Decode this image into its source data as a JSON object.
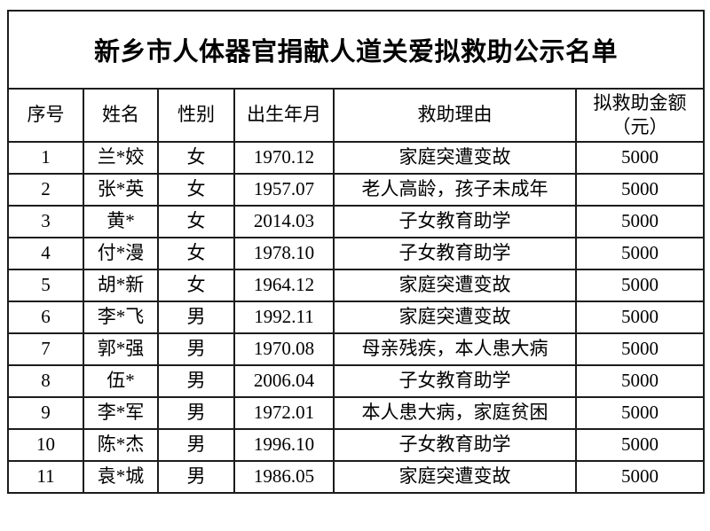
{
  "page": {
    "background_color": "#ffffff",
    "border_color": "#1c1c1c",
    "text_color": "#000000"
  },
  "title": "新乡市人体器官捐献人道关爱拟救助公示名单",
  "table": {
    "headers": [
      "序号",
      "姓名",
      "性别",
      "出生年月",
      "救助理由",
      "拟救助金额\n（元）"
    ],
    "rows": [
      [
        "1",
        "兰*姣",
        "女",
        "1970.12",
        "家庭突遭变故",
        "5000"
      ],
      [
        "2",
        "张*英",
        "女",
        "1957.07",
        "老人高龄，孩子未成年",
        "5000"
      ],
      [
        "3",
        "黄*",
        "女",
        "2014.03",
        "子女教育助学",
        "5000"
      ],
      [
        "4",
        "付*漫",
        "女",
        "1978.10",
        "子女教育助学",
        "5000"
      ],
      [
        "5",
        "胡*新",
        "女",
        "1964.12",
        "家庭突遭变故",
        "5000"
      ],
      [
        "6",
        "李*飞",
        "男",
        "1992.11",
        "家庭突遭变故",
        "5000"
      ],
      [
        "7",
        "郭*强",
        "男",
        "1970.08",
        "母亲残疾，本人患大病",
        "5000"
      ],
      [
        "8",
        "伍*",
        "男",
        "2006.04",
        "子女教育助学",
        "5000"
      ],
      [
        "9",
        "李*军",
        "男",
        "1972.01",
        "本人患大病，家庭贫困",
        "5000"
      ],
      [
        "10",
        "陈*杰",
        "男",
        "1996.10",
        "子女教育助学",
        "5000"
      ],
      [
        "11",
        "袁*城",
        "男",
        "1986.05",
        "家庭突遭变故",
        "5000"
      ]
    ]
  }
}
